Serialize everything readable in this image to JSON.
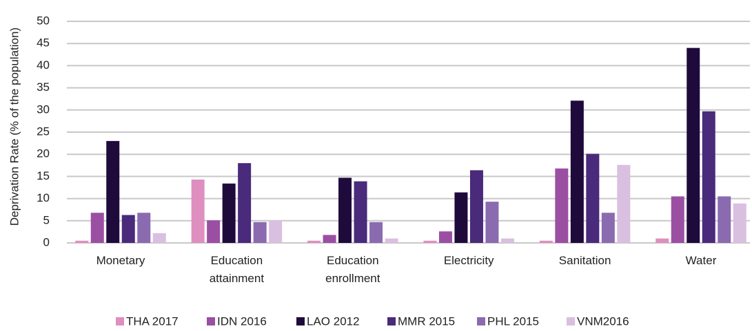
{
  "chart_data": {
    "type": "bar",
    "ylabel": "Deprivation Rate (% of the population)",
    "categories": [
      "Monetary",
      "Education attainment",
      "Education enrollment",
      "Electricity",
      "Sanitation",
      "Water"
    ],
    "series": [
      {
        "name": "THA 2017",
        "color": "#de8fbf",
        "values": [
          0.5,
          14.3,
          0.5,
          0.5,
          0.5,
          1
        ]
      },
      {
        "name": "IDN 2016",
        "color": "#9b4fa3",
        "values": [
          6.8,
          5.1,
          1.8,
          2.6,
          16.8,
          10.5
        ]
      },
      {
        "name": "LAO 2012",
        "color": "#1f0a3c",
        "values": [
          23,
          13.4,
          14.7,
          11.4,
          32.1,
          44
        ]
      },
      {
        "name": "MMR 2015",
        "color": "#4a2a7a",
        "values": [
          6.3,
          18,
          13.9,
          16.4,
          20.1,
          29.7
        ]
      },
      {
        "name": "PHL 2015",
        "color": "#8a6bb0",
        "values": [
          6.8,
          4.7,
          4.7,
          9.3,
          6.8,
          10.5
        ]
      },
      {
        "name": "VNM2016",
        "color": "#d9bfe0",
        "values": [
          2.2,
          5.1,
          1,
          1,
          17.6,
          8.9
        ]
      }
    ],
    "ylim": [
      0,
      50
    ],
    "yticks": [
      0,
      5,
      10,
      15,
      20,
      25,
      30,
      35,
      40,
      45,
      50
    ],
    "grid": true,
    "legend": "bottom"
  }
}
